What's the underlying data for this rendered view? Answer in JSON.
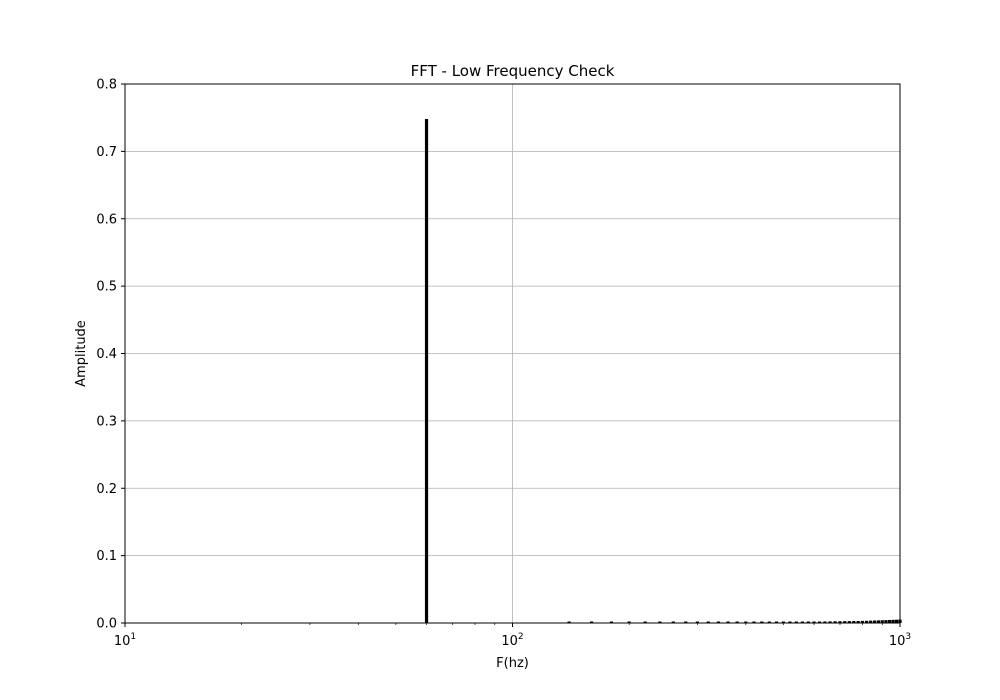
{
  "chart_data": {
    "type": "bar",
    "title": "FFT - Low Frequency Check",
    "xlabel": "F(hz)",
    "ylabel": "Amplitude",
    "x_scale": "log",
    "xlim": [
      10,
      1000
    ],
    "ylim": [
      0,
      0.8
    ],
    "grid": true,
    "bar_color": "#000000",
    "grid_color": "#b0b0b0",
    "y_ticks": [
      "0.0",
      "0.1",
      "0.2",
      "0.3",
      "0.4",
      "0.5",
      "0.6",
      "0.7",
      "0.8"
    ],
    "x_ticks": [
      {
        "base": "10",
        "exp": "1"
      },
      {
        "base": "10",
        "exp": "2"
      },
      {
        "base": "10",
        "exp": "3"
      }
    ],
    "series": [
      {
        "x": [
          60,
          140,
          160,
          180,
          200,
          220,
          240,
          260,
          280,
          300,
          320,
          340,
          360,
          380,
          400,
          420,
          440,
          460,
          480,
          500,
          520,
          540,
          560,
          580,
          600,
          620,
          640,
          660,
          680,
          700,
          720,
          740,
          760,
          780,
          800,
          820,
          840,
          860,
          880,
          900,
          920,
          940,
          960,
          980,
          1000
        ],
        "values": [
          0.748,
          0.0005,
          0.0005,
          0.0005,
          0.0006,
          0.0006,
          0.0006,
          0.0006,
          0.0007,
          0.0008,
          0.0008,
          0.0009,
          0.001,
          0.001,
          0.0012,
          0.0012,
          0.0013,
          0.0014,
          0.0015,
          0.0016,
          0.0017,
          0.0018,
          0.0019,
          0.002,
          0.0021,
          0.0022,
          0.0023,
          0.0024,
          0.0025,
          0.0026,
          0.0027,
          0.0028,
          0.0029,
          0.003,
          0.0031,
          0.0033,
          0.0035,
          0.0037,
          0.0039,
          0.0041,
          0.0043,
          0.0045,
          0.0047,
          0.0049,
          0.005
        ]
      }
    ]
  }
}
